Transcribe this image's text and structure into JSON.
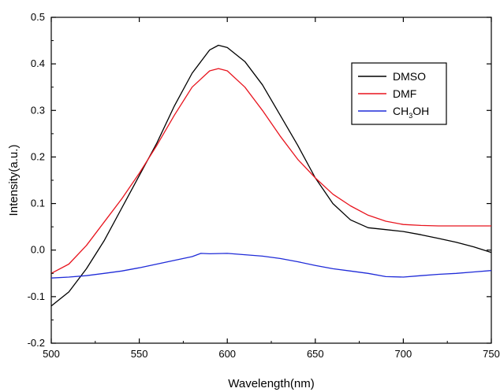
{
  "chart_data": {
    "type": "line",
    "title": "",
    "xlabel": "Wavelength(nm)",
    "ylabel": "Intensity(a.u.)",
    "xlim": [
      500,
      750
    ],
    "ylim": [
      -0.2,
      0.5
    ],
    "x_ticks": [
      "500",
      "550",
      "600",
      "650",
      "700",
      "750"
    ],
    "y_ticks": [
      "-0.2",
      "-0.1",
      "0.0",
      "0.1",
      "0.2",
      "0.3",
      "0.4",
      "0.5"
    ],
    "grid": false,
    "legend_position": "top-right",
    "series": [
      {
        "name": "DMSO",
        "color": "#000000",
        "x": [
          500,
          510,
          520,
          530,
          540,
          550,
          560,
          570,
          580,
          590,
          595,
          600,
          610,
          620,
          630,
          640,
          650,
          660,
          670,
          680,
          690,
          700,
          710,
          720,
          730,
          740,
          750
        ],
        "y": [
          -0.12,
          -0.09,
          -0.04,
          0.02,
          0.09,
          0.16,
          0.23,
          0.31,
          0.38,
          0.43,
          0.44,
          0.435,
          0.405,
          0.355,
          0.29,
          0.225,
          0.155,
          0.1,
          0.065,
          0.048,
          0.044,
          0.04,
          0.033,
          0.025,
          0.017,
          0.007,
          -0.005
        ]
      },
      {
        "name": "DMF",
        "color": "#e8141e",
        "x": [
          500,
          510,
          520,
          530,
          540,
          550,
          560,
          570,
          580,
          590,
          595,
          600,
          610,
          620,
          630,
          640,
          650,
          660,
          670,
          680,
          690,
          700,
          710,
          720,
          730,
          740,
          750
        ],
        "y": [
          -0.05,
          -0.03,
          0.01,
          0.06,
          0.11,
          0.165,
          0.225,
          0.29,
          0.35,
          0.385,
          0.39,
          0.385,
          0.35,
          0.3,
          0.245,
          0.195,
          0.155,
          0.12,
          0.095,
          0.075,
          0.062,
          0.055,
          0.053,
          0.052,
          0.052,
          0.052,
          0.052
        ]
      },
      {
        "name": "CH3OH",
        "color": "#1f2bd8",
        "x": [
          500,
          510,
          520,
          530,
          540,
          550,
          560,
          570,
          580,
          585,
          590,
          600,
          610,
          620,
          630,
          640,
          650,
          660,
          670,
          680,
          690,
          700,
          710,
          720,
          730,
          740,
          750
        ],
        "y": [
          -0.06,
          -0.058,
          -0.055,
          -0.05,
          -0.045,
          -0.038,
          -0.03,
          -0.022,
          -0.014,
          -0.007,
          -0.008,
          -0.007,
          -0.01,
          -0.013,
          -0.018,
          -0.025,
          -0.033,
          -0.04,
          -0.045,
          -0.05,
          -0.057,
          -0.058,
          -0.055,
          -0.052,
          -0.05,
          -0.047,
          -0.044
        ]
      }
    ]
  }
}
